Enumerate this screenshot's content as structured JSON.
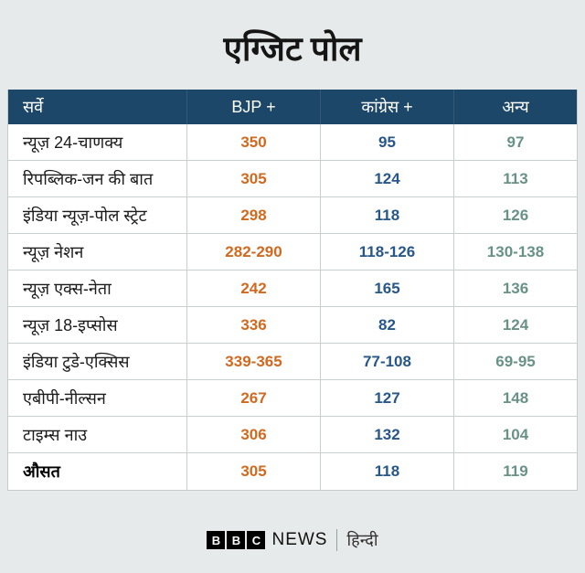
{
  "page": {
    "title": "एग्जिट पोल"
  },
  "colors": {
    "page_background": "#e7eaea",
    "header_background": "#1d4768",
    "bjp_value": "#d2691e",
    "congress_value": "#27578a",
    "others_value": "#689286"
  },
  "table": {
    "columns": [
      "सर्वे",
      "BJP +",
      "कांग्रेस +",
      "अन्य"
    ],
    "rows": [
      {
        "survey": "न्यूज़ 24-चाणक्य",
        "bjp": "350",
        "congress": "95",
        "others": "97",
        "bold": false
      },
      {
        "survey": "रिपब्लिक-जन की बात",
        "bjp": "305",
        "congress": "124",
        "others": "113",
        "bold": false
      },
      {
        "survey": "इंडिया न्यूज़-पोल स्ट्रेट",
        "bjp": "298",
        "congress": "118",
        "others": "126",
        "bold": false
      },
      {
        "survey": "न्यूज़ नेशन",
        "bjp": "282-290",
        "congress": "118-126",
        "others": "130-138",
        "bold": false
      },
      {
        "survey": "न्यूज़ एक्स-नेता",
        "bjp": "242",
        "congress": "165",
        "others": "136",
        "bold": false
      },
      {
        "survey": "न्यूज़ 18-इप्सोस",
        "bjp": "336",
        "congress": "82",
        "others": "124",
        "bold": false
      },
      {
        "survey": "इंडिया टुडे-एक्सिस",
        "bjp": "339-365",
        "congress": "77-108",
        "others": "69-95",
        "bold": false
      },
      {
        "survey": "एबीपी-नील्सन",
        "bjp": "267",
        "congress": "127",
        "others": "148",
        "bold": false
      },
      {
        "survey": "टाइम्स नाउ",
        "bjp": "306",
        "congress": "132",
        "others": "104",
        "bold": false
      },
      {
        "survey": "औसत",
        "bjp": "305",
        "congress": "118",
        "others": "119",
        "bold": true
      }
    ]
  },
  "footer": {
    "logo_letters": [
      "B",
      "B",
      "C"
    ],
    "brand": "NEWS",
    "language": "हिन्दी"
  },
  "chart_data": {
    "type": "table",
    "title": "एग्जिट पोल",
    "columns": [
      "सर्वे",
      "BJP +",
      "कांग्रेस +",
      "अन्य"
    ],
    "rows": [
      [
        "न्यूज़ 24-चाणक्य",
        "350",
        "95",
        "97"
      ],
      [
        "रिपब्लिक-जन की बात",
        "305",
        "124",
        "113"
      ],
      [
        "इंडिया न्यूज़-पोल स्ट्रेट",
        "298",
        "118",
        "126"
      ],
      [
        "न्यूज़ नेशन",
        "282-290",
        "118-126",
        "130-138"
      ],
      [
        "न्यूज़ एक्स-नेता",
        "242",
        "165",
        "136"
      ],
      [
        "न्यूज़ 18-इप्सोस",
        "336",
        "82",
        "124"
      ],
      [
        "इंडिया टुडे-एक्सिस",
        "339-365",
        "77-108",
        "69-95"
      ],
      [
        "एबीपी-नील्सन",
        "267",
        "127",
        "148"
      ],
      [
        "टाइम्स नाउ",
        "306",
        "132",
        "104"
      ],
      [
        "औसत",
        "305",
        "118",
        "119"
      ]
    ],
    "series_colors": {
      "BJP +": "#d2691e",
      "कांग्रेस +": "#27578a",
      "अन्य": "#689286"
    },
    "source": "BBC NEWS हिन्दी"
  }
}
